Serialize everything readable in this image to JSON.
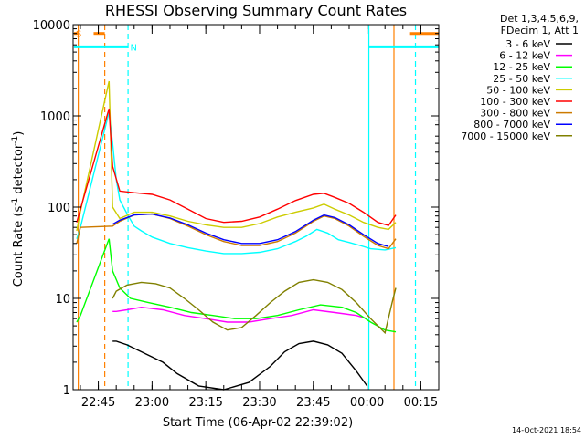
{
  "chart_data": {
    "type": "line",
    "title": "RHESSI Observing Summary Count Rates",
    "xlabel": "Start Time (06-Apr-02 22:39:02)",
    "ylabel": "Count Rate (s⁻¹ detector⁻¹)",
    "ylabel_parts": {
      "main": "Count Rate (s",
      "exp1": "-1",
      "mid": " detector",
      "exp2": "-1",
      "end": ")"
    },
    "yscale": "log",
    "ylim": [
      1,
      10000
    ],
    "xlim_minutes": [
      -7.03,
      95
    ],
    "y_ticks": [
      {
        "value": 1,
        "label": "1"
      },
      {
        "value": 10,
        "label": "10"
      },
      {
        "value": 100,
        "label": "100"
      },
      {
        "value": 1000,
        "label": "1000"
      },
      {
        "value": 10000,
        "label": "10000"
      }
    ],
    "x_ticks": [
      {
        "value": 0,
        "label": "22:45"
      },
      {
        "value": 15,
        "label": "23:00"
      },
      {
        "value": 30,
        "label": "23:15"
      },
      {
        "value": 45,
        "label": "23:30"
      },
      {
        "value": 60,
        "label": "23:45"
      },
      {
        "value": 75,
        "label": "00:00"
      },
      {
        "value": 90,
        "label": "00:15"
      }
    ],
    "legend_header": [
      "Det 1,3,4,5,6,9,",
      "FDecim 1, Att 1"
    ],
    "legend_position": "right",
    "series": [
      {
        "name": "3 - 6 keV",
        "color": "#000000",
        "x": [
          4,
          5,
          8,
          12,
          18,
          22,
          28,
          35,
          42,
          48,
          52,
          56,
          60,
          64,
          68,
          72,
          75
        ],
        "values": [
          3.4,
          3.4,
          3.1,
          2.6,
          2.0,
          1.5,
          1.1,
          1.0,
          1.2,
          1.8,
          2.6,
          3.2,
          3.4,
          3.1,
          2.5,
          1.6,
          1.1
        ]
      },
      {
        "name": "6 - 12 keV",
        "color": "#ff00ff",
        "x": [
          4,
          5,
          8,
          12,
          18,
          24,
          30,
          36,
          42,
          48,
          54,
          60,
          66,
          72,
          75
        ],
        "values": [
          7.2,
          7.2,
          7.5,
          8.0,
          7.5,
          6.5,
          6.0,
          5.5,
          5.5,
          6.0,
          6.5,
          7.5,
          7.0,
          6.5,
          6.0
        ]
      },
      {
        "name": "12 - 25 keV",
        "color": "#00ff00",
        "x": [
          -6,
          -5,
          3,
          4,
          6,
          9,
          14,
          20,
          26,
          32,
          38,
          44,
          50,
          56,
          62,
          68,
          72,
          76,
          80,
          83
        ],
        "values": [
          5.5,
          6.5,
          45,
          20,
          13,
          10,
          9,
          8,
          7,
          6.5,
          6,
          6,
          6.5,
          7.5,
          8.5,
          8,
          7,
          5.5,
          4.5,
          4.3
        ]
      },
      {
        "name": "25 - 50 keV",
        "color": "#00ffff",
        "x": [
          -6,
          -5,
          3,
          4,
          5,
          6,
          8,
          10,
          12,
          15,
          20,
          25,
          30,
          35,
          40,
          45,
          50,
          55,
          58,
          61,
          64,
          67,
          70,
          73,
          76,
          80,
          83
        ],
        "values": [
          45,
          60,
          1100,
          500,
          200,
          120,
          85,
          62,
          55,
          47,
          40,
          36,
          33,
          31,
          31,
          32,
          35,
          42,
          48,
          57,
          52,
          44,
          41,
          38,
          35,
          34,
          36
        ]
      },
      {
        "name": "50 - 100 keV",
        "color": "#cccc00",
        "x": [
          -6,
          -5,
          3,
          4,
          6,
          10,
          15,
          20,
          25,
          30,
          35,
          40,
          45,
          50,
          55,
          60,
          63,
          66,
          70,
          74,
          78,
          81,
          83
        ],
        "values": [
          55,
          90,
          2400,
          100,
          75,
          88,
          88,
          80,
          70,
          64,
          60,
          60,
          66,
          78,
          88,
          98,
          108,
          95,
          82,
          68,
          60,
          57,
          68
        ]
      },
      {
        "name": "100 - 300 keV",
        "color": "#ff0000",
        "x": [
          -6,
          -5,
          3,
          4,
          6,
          10,
          15,
          20,
          25,
          30,
          35,
          40,
          45,
          50,
          55,
          60,
          63,
          66,
          70,
          74,
          78,
          81,
          83
        ],
        "values": [
          68,
          95,
          1200,
          280,
          150,
          144,
          138,
          120,
          95,
          75,
          68,
          70,
          78,
          95,
          118,
          138,
          142,
          128,
          110,
          88,
          68,
          63,
          82
        ]
      },
      {
        "name": "300 - 800 keV",
        "color": "#cc7a00",
        "x": [
          -6,
          -5,
          4,
          6,
          10,
          15,
          20,
          25,
          30,
          35,
          40,
          45,
          50,
          55,
          60,
          63,
          66,
          70,
          74,
          78,
          81,
          83
        ],
        "values": [
          40,
          60,
          62,
          70,
          82,
          84,
          75,
          62,
          50,
          42,
          38,
          38,
          42,
          52,
          70,
          80,
          75,
          62,
          48,
          38,
          35,
          45
        ]
      },
      {
        "name": "800 - 7000 keV",
        "color": "#0000ff",
        "x": [
          4,
          6,
          10,
          15,
          20,
          25,
          30,
          35,
          40,
          45,
          50,
          55,
          60,
          63,
          66,
          70,
          74,
          78,
          81
        ],
        "values": [
          65,
          72,
          82,
          84,
          76,
          64,
          52,
          44,
          40,
          40,
          44,
          54,
          72,
          82,
          77,
          64,
          50,
          40,
          37
        ]
      },
      {
        "name": "7000 - 15000 keV",
        "color": "#808000",
        "x": [
          4,
          5,
          8,
          12,
          16,
          20,
          24,
          28,
          32,
          36,
          40,
          44,
          48,
          52,
          56,
          60,
          64,
          68,
          72,
          76,
          80,
          82,
          83
        ],
        "values": [
          10,
          12,
          14,
          15,
          14.5,
          13,
          10,
          7.5,
          5.5,
          4.5,
          4.8,
          6.5,
          9,
          12,
          15,
          16,
          15,
          12.5,
          9,
          6,
          4.2,
          9,
          13
        ]
      }
    ],
    "annotations": [
      {
        "text": "S",
        "color": "#ff8000"
      },
      {
        "text": "N",
        "color": "#00ffff"
      }
    ],
    "grid": false
  },
  "footer_date": "14-Oct-2021 18:54"
}
